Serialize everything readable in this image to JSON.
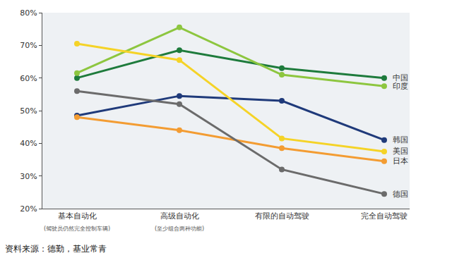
{
  "chart_data": {
    "type": "line",
    "categories": [
      "基本自动化",
      "高级自动化",
      "有限的自动驾驶",
      "完全自动驾驶"
    ],
    "annotations": [
      {
        "category": "基本自动化",
        "text": "(驾驶员仍然完全控制车辆)"
      },
      {
        "category": "高级自动化",
        "text": "(至少组合两种功能)"
      }
    ],
    "series": [
      {
        "name": "中国",
        "color": "#1e7b3c",
        "values": [
          60,
          68.5,
          63,
          60
        ]
      },
      {
        "name": "印度",
        "color": "#8dc63f",
        "values": [
          61.5,
          75.5,
          61,
          57.5
        ]
      },
      {
        "name": "韩国",
        "color": "#1f3a7a",
        "values": [
          48.5,
          54.5,
          53,
          41
        ]
      },
      {
        "name": "美国",
        "color": "#f5d327",
        "values": [
          70.5,
          65.5,
          41.5,
          37.5
        ]
      },
      {
        "name": "日本",
        "color": "#f39c32",
        "values": [
          48,
          44,
          38.5,
          34.5
        ]
      },
      {
        "name": "德国",
        "color": "#6b6b6b",
        "values": [
          56,
          52,
          32,
          24.5
        ]
      }
    ],
    "ylim": [
      20,
      80
    ],
    "yticks": [
      {
        "value": 20,
        "label": "20%"
      },
      {
        "value": 30,
        "label": "30%"
      },
      {
        "value": 40,
        "label": "40%"
      },
      {
        "value": 50,
        "label": "50%"
      },
      {
        "value": 60,
        "label": "60%"
      },
      {
        "value": 70,
        "label": "70%"
      },
      {
        "value": 80,
        "label": "80%"
      }
    ],
    "grid": false,
    "marker": "circle",
    "line_style": "solid",
    "source": "资料来源：德勤，基业常青"
  }
}
